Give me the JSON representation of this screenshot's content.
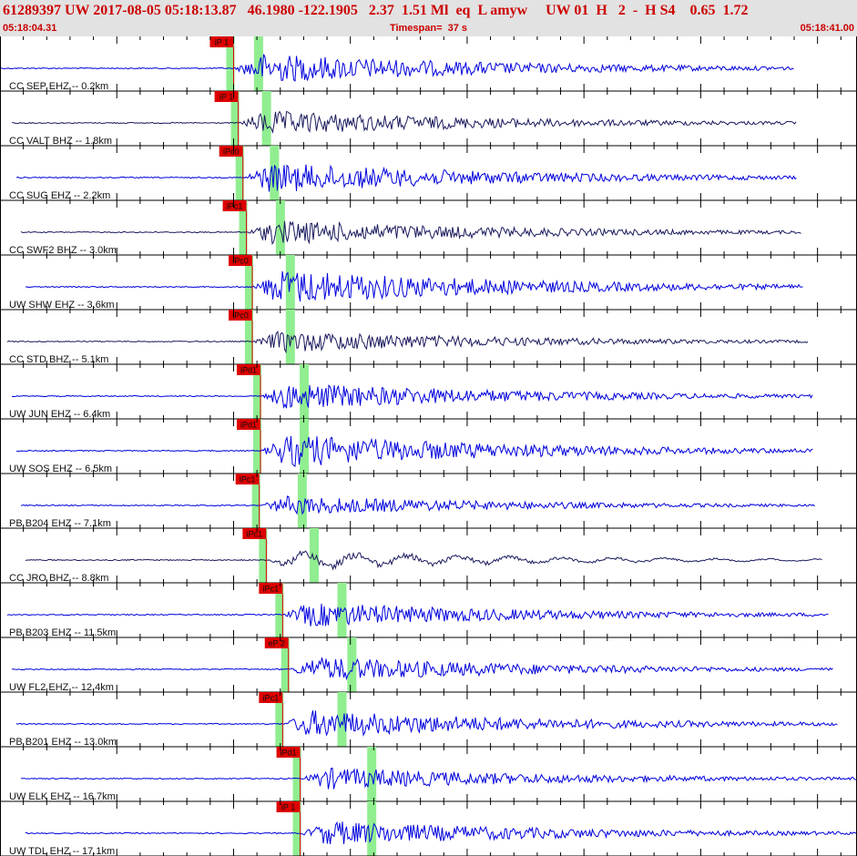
{
  "header": {
    "title": "61289397 UW 2017-08-05 05:18:13.87   46.1980 -122.1905   2.37  1.51 Ml  eq  L amyw     UW 01  H   2  -  H S4    0.65  1.72",
    "start_time": "05:18:04.31",
    "timespan": "Timespan=  37 s",
    "end_time": "05:18:41.00"
  },
  "colors": {
    "header_bg": "#e2e2e2",
    "header_text": "#cc0000",
    "trace_blue": "#0000dd",
    "trace_navy": "#1a1a5e",
    "pick_marker": "#dd0000",
    "highlight": "#90ee90"
  },
  "chart_data": {
    "type": "seismogram",
    "xlim": [
      0,
      36.69
    ],
    "x_unit": "s",
    "traces": [
      {
        "label": "CC SEP EHZ -- 0.2km",
        "pick": "iP 1",
        "pick_s": 10.0,
        "end_s": 34.0,
        "amp": 0.55,
        "color": "blue"
      },
      {
        "label": "CC VALT BHZ -- 1.8km",
        "pick": "iP 1",
        "pick_s": 10.2,
        "end_s": 34.1,
        "amp": 0.45,
        "color": "navy"
      },
      {
        "label": "CC SUG EHZ -- 2.2km",
        "pick": "iPc0",
        "pick_s": 10.4,
        "end_s": 34.1,
        "amp": 0.55,
        "color": "blue"
      },
      {
        "label": "CC SWF2 BHZ -- 3.0km",
        "pick": "iPc1",
        "pick_s": 10.55,
        "end_s": 34.3,
        "amp": 0.45,
        "color": "navy"
      },
      {
        "label": "UW SHW EHZ -- 3.6km",
        "pick": "iPc0",
        "pick_s": 10.8,
        "end_s": 34.4,
        "amp": 0.65,
        "color": "blue"
      },
      {
        "label": "CC STD BHZ -- 5.1km",
        "pick": "iPc0",
        "pick_s": 10.8,
        "end_s": 34.6,
        "amp": 0.4,
        "color": "navy"
      },
      {
        "label": "UW JUN EHZ -- 6.4km",
        "pick": "iPd1",
        "pick_s": 11.15,
        "end_s": 34.8,
        "amp": 0.5,
        "color": "blue"
      },
      {
        "label": "UW SOS EHZ -- 6.5km",
        "pick": "iPd1",
        "pick_s": 11.15,
        "end_s": 34.8,
        "amp": 0.6,
        "color": "blue"
      },
      {
        "label": "PB B204 EHZ -- 7.1km",
        "pick": "iPc1",
        "pick_s": 11.1,
        "end_s": 34.9,
        "amp": 0.35,
        "color": "blue"
      },
      {
        "label": "CC JRO BHZ -- 8.8km",
        "pick": "iPc1",
        "pick_s": 11.4,
        "end_s": 35.2,
        "amp": 0.4,
        "color": "navy"
      },
      {
        "label": "PB B203 EHZ -- 11.5km",
        "pick": "iPc1",
        "pick_s": 12.1,
        "end_s": 35.5,
        "amp": 0.45,
        "color": "blue"
      },
      {
        "label": "UW FL2 EHZ -- 12.4km",
        "pick": "eP 2",
        "pick_s": 12.35,
        "end_s": 35.7,
        "amp": 0.45,
        "color": "blue"
      },
      {
        "label": "PB B201 EHZ -- 13.0km",
        "pick": "iPc1",
        "pick_s": 12.1,
        "end_s": 35.9,
        "amp": 0.5,
        "color": "blue"
      },
      {
        "label": "UW ELK EHZ -- 16.7km",
        "pick": "iPd1",
        "pick_s": 12.85,
        "end_s": 36.69,
        "amp": 0.4,
        "color": "blue"
      },
      {
        "label": "UW TDL EHZ -- 17.1km",
        "pick": "iP 1",
        "pick_s": 12.85,
        "end_s": 36.69,
        "amp": 0.45,
        "color": "blue"
      }
    ]
  }
}
